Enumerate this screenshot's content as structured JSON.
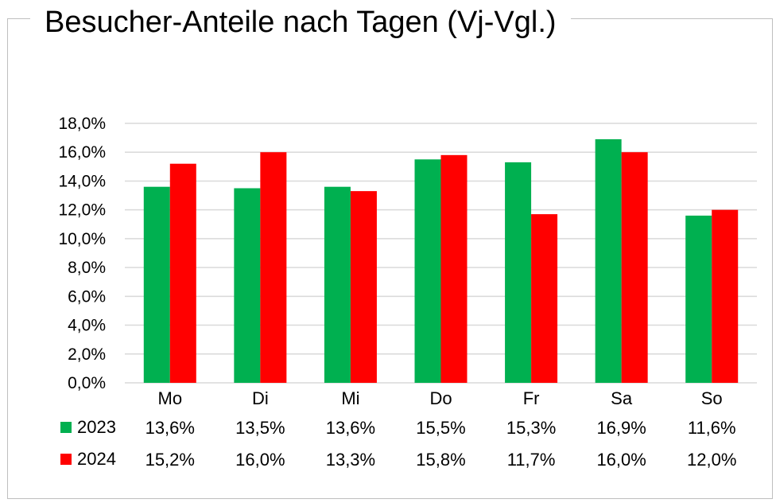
{
  "chart_data": {
    "type": "bar",
    "title": "Besucher-Anteile nach Tagen (Vj-Vgl.)",
    "categories": [
      "Mo",
      "Di",
      "Mi",
      "Do",
      "Fr",
      "Sa",
      "So"
    ],
    "series": [
      {
        "name": "2023",
        "color": "#00b050",
        "values": [
          13.6,
          13.5,
          13.6,
          15.5,
          15.3,
          16.9,
          11.6
        ],
        "labels": [
          "13,6%",
          "13,5%",
          "13,6%",
          "15,5%",
          "15,3%",
          "16,9%",
          "11,6%"
        ]
      },
      {
        "name": "2024",
        "color": "#ff0000",
        "values": [
          15.2,
          16.0,
          13.3,
          15.8,
          11.7,
          16.0,
          12.0
        ],
        "labels": [
          "15,2%",
          "16,0%",
          "13,3%",
          "15,8%",
          "11,7%",
          "16,0%",
          "12,0%"
        ]
      }
    ],
    "ylim": [
      0,
      18
    ],
    "yticks": [
      0,
      2,
      4,
      6,
      8,
      10,
      12,
      14,
      16,
      18
    ],
    "ytick_labels": [
      "0,0%",
      "2,0%",
      "4,0%",
      "6,0%",
      "8,0%",
      "10,0%",
      "12,0%",
      "14,0%",
      "16,0%",
      "18,0%"
    ],
    "grid": true,
    "legend": "data-table-below"
  }
}
